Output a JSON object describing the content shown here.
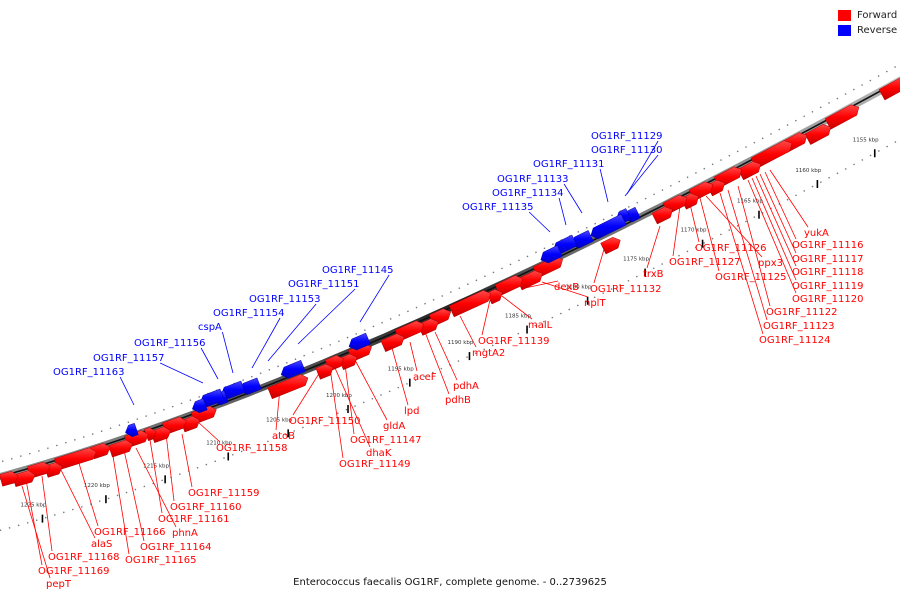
{
  "legend": {
    "forward": {
      "label": "Forward",
      "color": "#ff0000"
    },
    "reverse": {
      "label": "Reverse",
      "color": "#0000ff"
    }
  },
  "caption": "Enterococcus faecalis OG1RF, complete genome. - 0..2739625",
  "ticks": [
    "1155 kbp",
    "1160 kbp",
    "1165 kbp",
    "1170 kbp",
    "1175 kbp",
    "1180 kbp",
    "1185 kbp",
    "1190 kbp",
    "1195 kbp",
    "1200 kbp",
    "1205 kbp",
    "1210 kbp",
    "1215 kbp",
    "1220 kbp",
    "1225 kbp"
  ],
  "reverse_labels": [
    "OG1RF_11129",
    "OG1RF_11130",
    "OG1RF_11131",
    "OG1RF_11133",
    "OG1RF_11134",
    "OG1RF_11135",
    "OG1RF_11145",
    "OG1RF_11151",
    "OG1RF_11153",
    "OG1RF_11154",
    "cspA",
    "OG1RF_11156",
    "OG1RF_11157",
    "OG1RF_11163"
  ],
  "forward_labels": [
    "yukA",
    "OG1RF_11116",
    "OG1RF_11117",
    "OG1RF_11118",
    "OG1RF_11119",
    "OG1RF_11120",
    "OG1RF_11122",
    "OG1RF_11123",
    "OG1RF_11124",
    "ppx3",
    "OG1RF_11125",
    "OG1RF_11126",
    "OG1RF_11127",
    "trxB",
    "OG1RF_11132",
    "nplT",
    "dexB",
    "malL",
    "OG1RF_11139",
    "mgtA2",
    "pdhA",
    "pdhB",
    "aceF",
    "lpd",
    "gldA",
    "OG1RF_11147",
    "dhaK",
    "OG1RF_11149",
    "OG1RF_11150",
    "atoB",
    "OG1RF_11158",
    "OG1RF_11159",
    "OG1RF_11160",
    "OG1RF_11161",
    "phnA",
    "OG1RF_11164",
    "OG1RF_11165",
    "OG1RF_11166",
    "alaS",
    "OG1RF_11168",
    "OG1RF_11169",
    "pepT"
  ]
}
